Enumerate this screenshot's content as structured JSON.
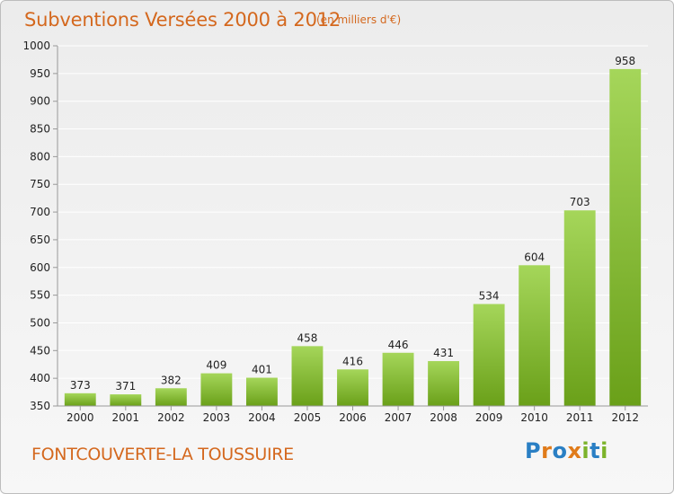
{
  "title": "Subventions Versées 2000 à 2012",
  "subtitle": "(en milliers d'€)",
  "commune": "FONTCOUVERTE-LA TOUSSUIRE",
  "logo": {
    "letters": [
      "P",
      "r",
      "o",
      "x",
      "i",
      "t",
      "i"
    ],
    "colors": [
      "#2a7fc4",
      "#e07b1a",
      "#2a7fc4",
      "#e07b1a",
      "#7cb32a",
      "#2a7fc4",
      "#7cb32a"
    ]
  },
  "chart_data": {
    "type": "bar",
    "categories": [
      "2000",
      "2001",
      "2002",
      "2003",
      "2004",
      "2005",
      "2006",
      "2007",
      "2008",
      "2009",
      "2010",
      "2011",
      "2012"
    ],
    "values": [
      373,
      371,
      382,
      409,
      401,
      458,
      416,
      446,
      431,
      534,
      604,
      703,
      958
    ],
    "value_labels": [
      "373",
      "371",
      "382",
      "409",
      "401",
      "458",
      "416",
      "446",
      "431",
      "534",
      "604",
      "703",
      "958"
    ],
    "title": "Subventions Versées 2000 à 2012",
    "subtitle": "(en milliers d'€)",
    "ylim": [
      350,
      1000
    ],
    "yticks": [
      "350",
      "400",
      "450",
      "500",
      "550",
      "600",
      "650",
      "700",
      "750",
      "800",
      "850",
      "900",
      "950",
      "1000"
    ],
    "grid": true,
    "colors": {
      "bar_light": "#a5d65a",
      "bar_dark": "#6aa019",
      "grid": "#ffffff",
      "axis": "#999999"
    }
  }
}
